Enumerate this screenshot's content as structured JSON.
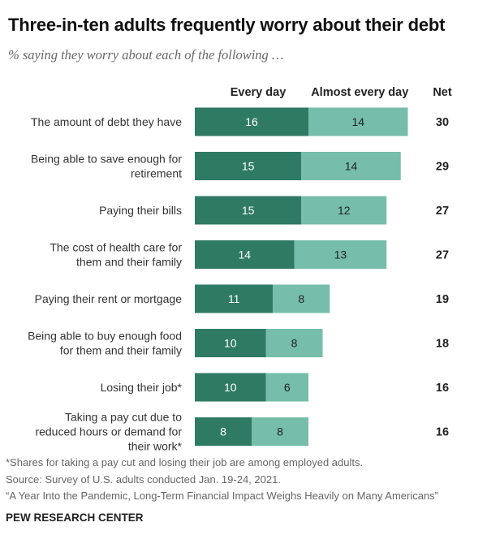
{
  "title": "Three-in-ten adults frequently worry about their debt",
  "subtitle": "% saying they worry about each of the following …",
  "chart_data": {
    "type": "bar",
    "orientation": "horizontal",
    "stacked": true,
    "categories": [
      [
        "The amount of debt they have"
      ],
      [
        "Being able to save enough for",
        "retirement"
      ],
      [
        "Paying their bills"
      ],
      [
        "The cost of health care for",
        "them and their family"
      ],
      [
        "Paying their rent or mortgage"
      ],
      [
        "Being able to buy enough food",
        "for them and their family"
      ],
      [
        "Losing their job*"
      ],
      [
        "Taking a pay cut due to",
        "reduced hours or demand for",
        "their work*"
      ]
    ],
    "series": [
      {
        "name": "Every day",
        "color": "#2f7a63",
        "values": [
          16,
          15,
          15,
          14,
          11,
          10,
          10,
          8
        ]
      },
      {
        "name": "Almost every day",
        "color": "#76bea9",
        "values": [
          14,
          14,
          12,
          13,
          8,
          8,
          6,
          8
        ]
      }
    ],
    "net_label": "Net",
    "net": [
      30,
      29,
      27,
      27,
      19,
      18,
      16,
      16
    ],
    "legend": "top"
  },
  "footnote": "*Shares for taking a pay cut and losing their job are among employed adults.",
  "source": "Source: Survey of U.S. adults conducted Jan. 19-24, 2021.",
  "report": "“A Year Into the Pandemic, Long-Term Financial Impact Weighs Heavily on Many Americans”",
  "brand": "PEW RESEARCH CENTER"
}
